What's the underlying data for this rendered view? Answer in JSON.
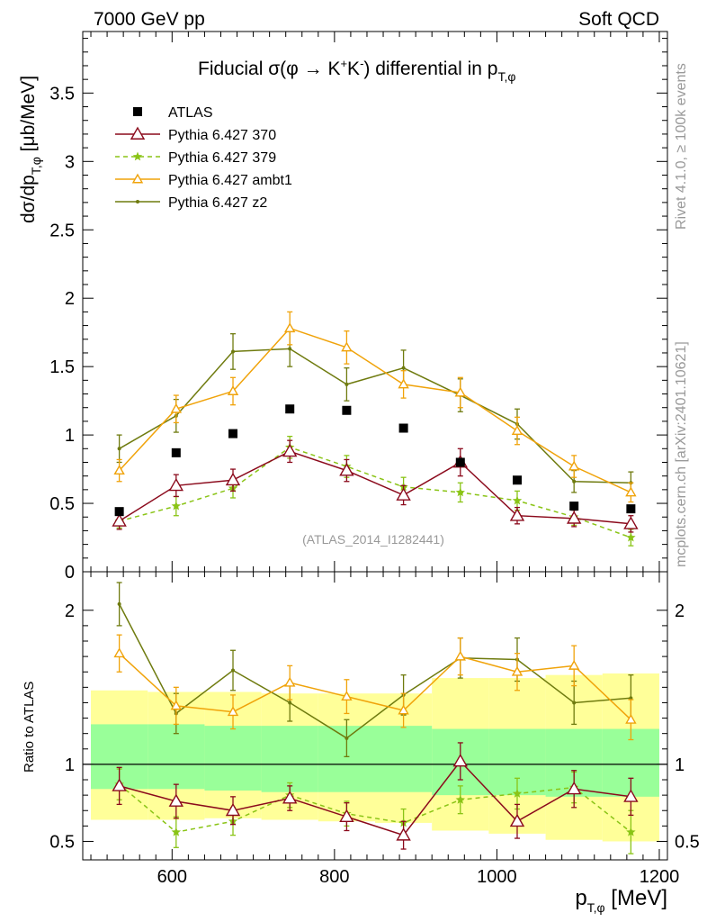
{
  "header": {
    "left": "7000 GeV pp",
    "right": "Soft QCD"
  },
  "side_labels": {
    "rivet": "Rivet 4.1.0, ≥ 100k events",
    "mcplots": "mcplots.cern.ch [arXiv:2401.10621]"
  },
  "colors": {
    "atlas": "#000000",
    "p370": "#8b0a1c",
    "p379": "#8ac416",
    "ambt1": "#f0a30a",
    "z2": "#6f7b0f",
    "band_inner": "#99ff99",
    "band_outer": "#ffff99"
  },
  "chart_data": [
    {
      "type": "line",
      "panel": "main",
      "title": "Fiducial σ(φ → K⁺K⁻) differential in p_T,φ",
      "title_parts": {
        "pre": "Fiducial ",
        "sigma": "σ(φ →  K",
        "kplus": "+",
        "k": "K",
        "kminus": "-",
        "post": ") differential in p",
        "sub": "T,φ"
      },
      "ylabel": "dσ/dp_T,φ [μb/MeV]",
      "ylabel_parts": {
        "pre": "dσ/dp",
        "sub": "T,φ",
        "post": " [μb/MeV]"
      },
      "xlabel": "",
      "xlim": [
        490,
        1210
      ],
      "ylim": [
        0,
        3.95
      ],
      "yticks": [
        0,
        0.5,
        1,
        1.5,
        2,
        2.5,
        3,
        3.5
      ],
      "ytick_labels": [
        "0",
        "0.5",
        "1",
        "1.5",
        "2",
        "2.5",
        "3",
        "3.5"
      ],
      "x": [
        535,
        605,
        675,
        745,
        815,
        885,
        955,
        1025,
        1095,
        1165
      ],
      "watermark": "(ATLAS_2014_I1282441)",
      "series": [
        {
          "name": "ATLAS",
          "key": "atlas",
          "marker": "square",
          "line": false,
          "values": [
            0.44,
            0.87,
            1.01,
            1.19,
            1.18,
            1.05,
            0.8,
            0.67,
            0.48,
            0.46
          ],
          "errors": [
            0.02,
            0.02,
            0.02,
            0.02,
            0.02,
            0.02,
            0.02,
            0.02,
            0.02,
            0.02
          ]
        },
        {
          "name": "Pythia 6.427 370",
          "key": "p370",
          "marker": "open-triangle",
          "line": "solid",
          "values": [
            0.37,
            0.63,
            0.67,
            0.88,
            0.74,
            0.56,
            0.8,
            0.41,
            0.39,
            0.35
          ],
          "errors": [
            0.06,
            0.08,
            0.08,
            0.08,
            0.08,
            0.07,
            0.1,
            0.06,
            0.06,
            0.06
          ]
        },
        {
          "name": "Pythia 6.427 379",
          "key": "p379",
          "marker": "star",
          "line": "dashed",
          "values": [
            0.37,
            0.48,
            0.61,
            0.91,
            0.77,
            0.62,
            0.58,
            0.52,
            0.4,
            0.25
          ],
          "errors": [
            0.05,
            0.07,
            0.07,
            0.08,
            0.08,
            0.07,
            0.07,
            0.07,
            0.06,
            0.06
          ]
        },
        {
          "name": "Pythia 6.427 ambt1",
          "key": "ambt1",
          "marker": "open-triangle-small",
          "line": "solid",
          "values": [
            0.74,
            1.19,
            1.32,
            1.78,
            1.64,
            1.37,
            1.31,
            1.03,
            0.77,
            0.58
          ],
          "errors": [
            0.08,
            0.1,
            0.1,
            0.12,
            0.12,
            0.1,
            0.11,
            0.1,
            0.08,
            0.07
          ]
        },
        {
          "name": "Pythia 6.427 z2",
          "key": "z2",
          "marker": "dot",
          "line": "solid",
          "values": [
            0.9,
            1.14,
            1.61,
            1.63,
            1.37,
            1.49,
            1.29,
            1.08,
            0.66,
            0.65
          ],
          "errors": [
            0.1,
            0.12,
            0.13,
            0.13,
            0.12,
            0.13,
            0.12,
            0.11,
            0.08,
            0.08
          ]
        }
      ]
    },
    {
      "type": "line",
      "panel": "ratio",
      "ylabel": "Ratio to ATLAS",
      "xlabel": "p_T,φ [MeV]",
      "xlabel_parts": {
        "pre": "p",
        "sub": "T,φ",
        "post": " [MeV]"
      },
      "xlim": [
        490,
        1210
      ],
      "ylim": [
        0.38,
        2.25
      ],
      "yticks": [
        0.5,
        1,
        2
      ],
      "ytick_labels": [
        "0.5",
        "1",
        "2"
      ],
      "xticks": [
        600,
        800,
        1000,
        1200
      ],
      "xtick_labels": [
        "600",
        "800",
        "1000",
        "1200"
      ],
      "x": [
        535,
        605,
        675,
        745,
        815,
        885,
        955,
        1025,
        1095,
        1165
      ],
      "bins": [
        [
          500,
          570
        ],
        [
          570,
          640
        ],
        [
          640,
          710
        ],
        [
          710,
          780
        ],
        [
          780,
          850
        ],
        [
          850,
          920
        ],
        [
          920,
          990
        ],
        [
          990,
          1060
        ],
        [
          1060,
          1130
        ],
        [
          1130,
          1200
        ]
      ],
      "band_inner": [
        [
          0.84,
          1.26
        ],
        [
          0.84,
          1.26
        ],
        [
          0.83,
          1.25
        ],
        [
          0.82,
          1.25
        ],
        [
          0.82,
          1.25
        ],
        [
          0.82,
          1.25
        ],
        [
          0.8,
          1.23
        ],
        [
          0.8,
          1.23
        ],
        [
          0.79,
          1.23
        ],
        [
          0.79,
          1.23
        ]
      ],
      "band_outer": [
        [
          0.64,
          1.48
        ],
        [
          0.64,
          1.47
        ],
        [
          0.65,
          1.47
        ],
        [
          0.64,
          1.46
        ],
        [
          0.63,
          1.46
        ],
        [
          0.62,
          1.46
        ],
        [
          0.57,
          1.56
        ],
        [
          0.55,
          1.56
        ],
        [
          0.51,
          1.58
        ],
        [
          0.5,
          1.59
        ]
      ],
      "series": [
        {
          "name": "Pythia 6.427 370",
          "key": "p370",
          "marker": "open-triangle",
          "line": "solid",
          "values": [
            0.86,
            0.76,
            0.7,
            0.78,
            0.66,
            0.54,
            1.02,
            0.63,
            0.84,
            0.79
          ],
          "errors": [
            0.12,
            0.11,
            0.09,
            0.08,
            0.09,
            0.09,
            0.12,
            0.11,
            0.12,
            0.12
          ]
        },
        {
          "name": "Pythia 6.427 379",
          "key": "p379",
          "marker": "star",
          "line": "dashed",
          "values": [
            0.87,
            0.56,
            0.63,
            0.8,
            0.68,
            0.62,
            0.77,
            0.81,
            0.85,
            0.56
          ],
          "errors": [
            0.1,
            0.1,
            0.09,
            0.08,
            0.08,
            0.09,
            0.09,
            0.1,
            0.1,
            0.14
          ]
        },
        {
          "name": "Pythia 6.427 ambt1",
          "key": "ambt1",
          "marker": "open-triangle-small",
          "line": "solid",
          "values": [
            1.72,
            1.38,
            1.34,
            1.53,
            1.44,
            1.35,
            1.7,
            1.6,
            1.64,
            1.29
          ],
          "errors": [
            0.12,
            0.12,
            0.11,
            0.11,
            0.11,
            0.11,
            0.12,
            0.12,
            0.13,
            0.13
          ]
        },
        {
          "name": "Pythia 6.427 z2",
          "key": "z2",
          "marker": "dot",
          "line": "solid",
          "values": [
            2.04,
            1.33,
            1.61,
            1.4,
            1.17,
            1.45,
            1.69,
            1.68,
            1.4,
            1.43
          ],
          "errors": [
            0.14,
            0.13,
            0.13,
            0.12,
            0.12,
            0.13,
            0.13,
            0.14,
            0.14,
            0.15
          ]
        }
      ]
    }
  ]
}
